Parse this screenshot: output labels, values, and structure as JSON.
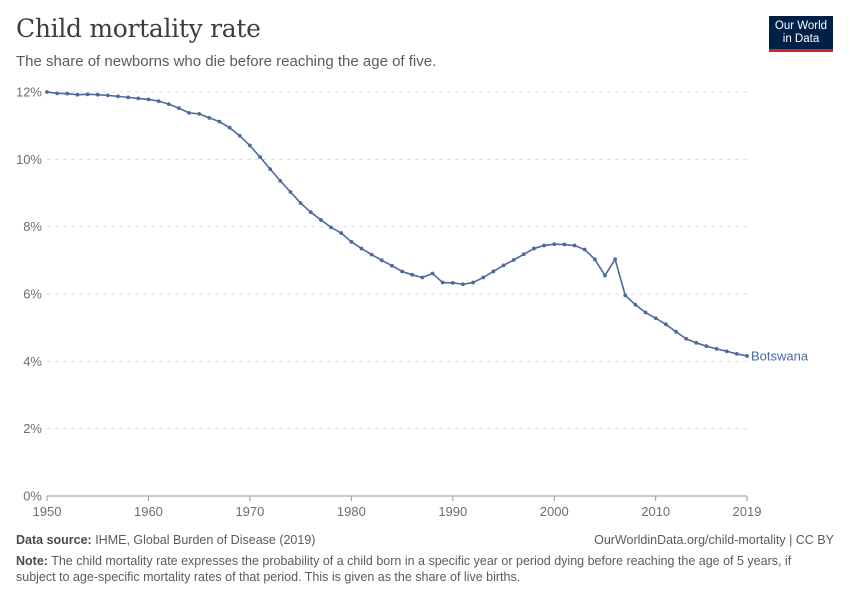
{
  "header": {
    "title": "Child mortality rate",
    "subtitle": "The share of newborns who die before reaching the age of five."
  },
  "logo": {
    "line1": "Our World",
    "line2": "in Data"
  },
  "footer": {
    "source_label": "Data source:",
    "source_text": " IHME, Global Burden of Disease (2019)",
    "url": "OurWorldinData.org/child-mortality | CC BY",
    "note_label": "Note:",
    "note_text": " The child mortality rate expresses the probability of a child born in a specific year or period dying before reaching the age of 5 years, if subject to age-specific mortality rates of that period. This is given as the share of live births."
  },
  "chart_data": {
    "type": "line",
    "title": "Child mortality rate",
    "subtitle": "The share of newborns who die before reaching the age of five.",
    "xlim": [
      1950,
      2019
    ],
    "ylim": [
      0,
      12
    ],
    "x_ticks": [
      1950,
      1960,
      1970,
      1980,
      1990,
      2000,
      2010,
      2019
    ],
    "y_ticks": [
      0,
      2,
      4,
      6,
      8,
      10,
      12
    ],
    "y_tick_labels": [
      "0%",
      "2%",
      "4%",
      "6%",
      "8%",
      "10%",
      "12%"
    ],
    "grid": "horizontal dashed",
    "line_color": "#4c6a9c",
    "series": [
      {
        "name": "Botswana",
        "x": [
          1950,
          1951,
          1952,
          1953,
          1954,
          1955,
          1956,
          1957,
          1958,
          1959,
          1960,
          1961,
          1962,
          1963,
          1964,
          1965,
          1966,
          1967,
          1968,
          1969,
          1970,
          1971,
          1972,
          1973,
          1974,
          1975,
          1976,
          1977,
          1978,
          1979,
          1980,
          1981,
          1982,
          1983,
          1984,
          1985,
          1986,
          1987,
          1988,
          1989,
          1990,
          1991,
          1992,
          1993,
          1994,
          1995,
          1996,
          1997,
          1998,
          1999,
          2000,
          2001,
          2002,
          2003,
          2004,
          2005,
          2006,
          2007,
          2008,
          2009,
          2010,
          2011,
          2012,
          2013,
          2014,
          2015,
          2016,
          2017,
          2018,
          2019
        ],
        "values": [
          12.0,
          11.96,
          11.95,
          11.92,
          11.93,
          11.92,
          11.9,
          11.87,
          11.84,
          11.81,
          11.78,
          11.73,
          11.64,
          11.52,
          11.38,
          11.35,
          11.23,
          11.12,
          10.94,
          10.7,
          10.41,
          10.07,
          9.71,
          9.36,
          9.03,
          8.7,
          8.43,
          8.2,
          7.98,
          7.81,
          7.55,
          7.35,
          7.17,
          7.0,
          6.84,
          6.67,
          6.57,
          6.49,
          6.61,
          6.34,
          6.33,
          6.29,
          6.34,
          6.49,
          6.67,
          6.85,
          7.01,
          7.18,
          7.35,
          7.44,
          7.48,
          7.47,
          7.44,
          7.32,
          7.03,
          6.55,
          7.03,
          5.96,
          5.68,
          5.45,
          5.28,
          5.1,
          4.88,
          4.67,
          4.55,
          4.45,
          4.37,
          4.3,
          4.22,
          4.16
        ]
      }
    ]
  }
}
